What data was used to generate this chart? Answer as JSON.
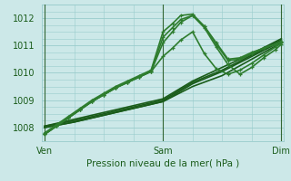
{
  "xlabel": "Pression niveau de la mer( hPa )",
  "bg_color": "#cce8e8",
  "grid_color": "#99cccc",
  "ylim": [
    1007.5,
    1012.5
  ],
  "yticks": [
    1008,
    1009,
    1010,
    1011,
    1012
  ],
  "xtick_labels": [
    "Ven",
    "Sam",
    "Dim"
  ],
  "xtick_positions": [
    0.0,
    1.0,
    2.0
  ],
  "series": [
    {
      "x": [
        0.0,
        0.25,
        0.5,
        0.75,
        1.0,
        1.25,
        1.5,
        1.75,
        2.0
      ],
      "y": [
        1008.0,
        1008.2,
        1008.45,
        1008.7,
        1008.95,
        1009.5,
        1009.9,
        1010.5,
        1011.1
      ],
      "color": "#1a5c1a",
      "lw": 1.2,
      "marker": null
    },
    {
      "x": [
        0.0,
        0.25,
        0.5,
        0.75,
        1.0,
        1.25,
        1.5,
        1.75,
        2.0
      ],
      "y": [
        1008.0,
        1008.2,
        1008.45,
        1008.7,
        1008.95,
        1009.6,
        1010.05,
        1010.6,
        1011.15
      ],
      "color": "#1a5c1a",
      "lw": 1.2,
      "marker": null
    },
    {
      "x": [
        0.0,
        0.25,
        0.5,
        0.75,
        1.0,
        1.25,
        1.5,
        1.75,
        2.0
      ],
      "y": [
        1008.05,
        1008.25,
        1008.5,
        1008.75,
        1009.0,
        1009.65,
        1010.1,
        1010.65,
        1011.2
      ],
      "color": "#1a5c1a",
      "lw": 1.2,
      "marker": null
    },
    {
      "x": [
        0.0,
        0.25,
        0.5,
        0.75,
        1.0,
        1.25,
        1.5,
        1.75,
        2.0
      ],
      "y": [
        1008.05,
        1008.3,
        1008.55,
        1008.8,
        1009.05,
        1009.7,
        1010.2,
        1010.7,
        1011.25
      ],
      "color": "#1a5c1a",
      "lw": 1.2,
      "marker": null
    },
    {
      "x": [
        0.0,
        0.1,
        0.2,
        0.3,
        0.4,
        0.5,
        0.6,
        0.7,
        0.8,
        0.9,
        1.0,
        1.08,
        1.15,
        1.25,
        1.35,
        1.45,
        1.55,
        1.65,
        1.75,
        1.85,
        1.95,
        2.0
      ],
      "y": [
        1007.75,
        1008.05,
        1008.35,
        1008.65,
        1008.95,
        1009.2,
        1009.45,
        1009.65,
        1009.85,
        1010.05,
        1010.6,
        1010.9,
        1011.2,
        1011.5,
        1010.7,
        1010.15,
        1009.95,
        1010.1,
        1010.35,
        1010.65,
        1010.95,
        1011.1
      ],
      "color": "#2e7d2e",
      "lw": 1.2,
      "marker": "+"
    },
    {
      "x": [
        0.0,
        0.1,
        0.2,
        0.3,
        0.4,
        0.5,
        0.6,
        0.7,
        0.8,
        0.9,
        1.0,
        1.08,
        1.15,
        1.25,
        1.35,
        1.45,
        1.55,
        1.65,
        1.75,
        1.85,
        1.95,
        2.0
      ],
      "y": [
        1007.75,
        1008.05,
        1008.35,
        1008.65,
        1008.95,
        1009.2,
        1009.45,
        1009.65,
        1009.85,
        1010.05,
        1011.1,
        1011.5,
        1011.85,
        1012.1,
        1011.65,
        1010.95,
        1010.3,
        1009.95,
        1010.2,
        1010.55,
        1010.85,
        1011.05
      ],
      "color": "#2e7d2e",
      "lw": 1.2,
      "marker": "+"
    },
    {
      "x": [
        0.0,
        0.1,
        0.2,
        0.3,
        0.4,
        0.5,
        0.6,
        0.7,
        0.8,
        0.9,
        1.0,
        1.08,
        1.15,
        1.25,
        1.35,
        1.45,
        1.55,
        1.65,
        1.75,
        1.85,
        1.95,
        2.0
      ],
      "y": [
        1007.75,
        1008.05,
        1008.35,
        1008.65,
        1008.95,
        1009.2,
        1009.45,
        1009.65,
        1009.85,
        1010.05,
        1011.3,
        1011.65,
        1011.95,
        1012.1,
        1011.7,
        1011.05,
        1010.45,
        1010.5,
        1010.7,
        1010.9,
        1011.05,
        1011.15
      ],
      "color": "#2e7d2e",
      "lw": 1.2,
      "marker": "+"
    },
    {
      "x": [
        0.0,
        0.1,
        0.2,
        0.3,
        0.4,
        0.5,
        0.6,
        0.7,
        0.8,
        0.9,
        1.0,
        1.08,
        1.15,
        1.25,
        1.35,
        1.45,
        1.55,
        1.65,
        1.75,
        1.85,
        1.95,
        2.0
      ],
      "y": [
        1007.8,
        1008.1,
        1008.4,
        1008.7,
        1009.0,
        1009.25,
        1009.5,
        1009.7,
        1009.9,
        1010.1,
        1011.5,
        1011.8,
        1012.1,
        1012.15,
        1011.7,
        1011.1,
        1010.5,
        1010.55,
        1010.75,
        1010.9,
        1011.05,
        1011.15
      ],
      "color": "#2e7d2e",
      "lw": 1.2,
      "marker": "+"
    }
  ],
  "vlines": [
    0.0,
    1.0,
    2.0
  ],
  "vline_color": "#336633",
  "vline_lw": 0.8
}
